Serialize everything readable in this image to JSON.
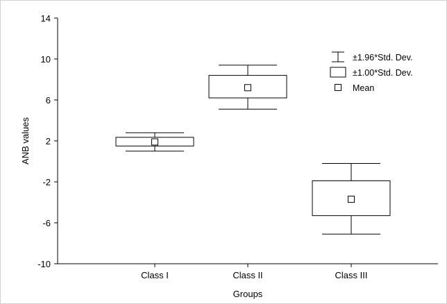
{
  "chart_data": {
    "type": "box",
    "xlabel": "Groups",
    "ylabel": "ANB values",
    "ylim": [
      -10,
      14
    ],
    "yticks": [
      14,
      10,
      6,
      2,
      -2,
      -6,
      -10
    ],
    "categories": [
      "Class I",
      "Class II",
      "Class III"
    ],
    "series": [
      {
        "category": "Class I",
        "mean": 1.9,
        "sd_low": 1.5,
        "sd_high": 2.35,
        "whisker_low": 1.0,
        "whisker_high": 2.8
      },
      {
        "category": "Class II",
        "mean": 7.2,
        "sd_low": 6.2,
        "sd_high": 8.4,
        "whisker_low": 5.1,
        "whisker_high": 9.4
      },
      {
        "category": "Class III",
        "mean": -3.7,
        "sd_low": -5.3,
        "sd_high": -1.9,
        "whisker_low": -7.1,
        "whisker_high": -0.2
      }
    ],
    "legend": {
      "placement": "top-right",
      "items": [
        {
          "symbol": "whisker",
          "label": "±1.96*Std. Dev."
        },
        {
          "symbol": "box",
          "label": "±1.00*Std. Dev."
        },
        {
          "symbol": "square",
          "label": "Mean"
        }
      ]
    },
    "grid": false
  }
}
